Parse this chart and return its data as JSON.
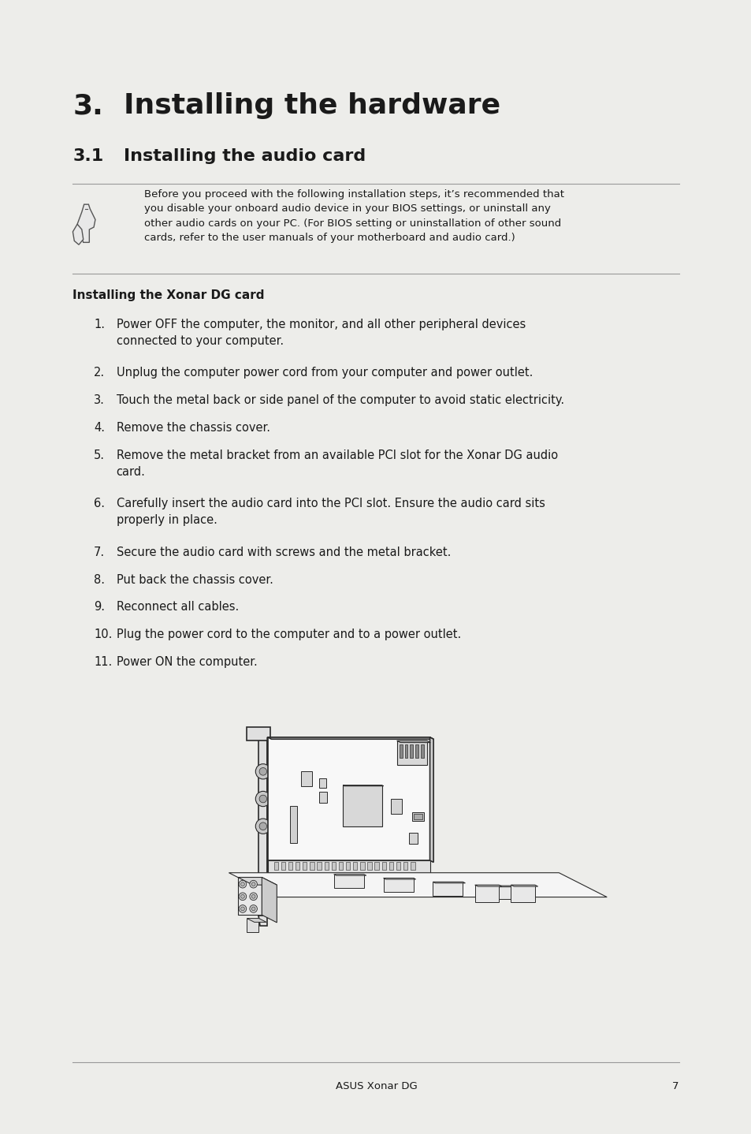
{
  "bg_color": "#ededea",
  "page_bg": "#ffffff",
  "title_number": "3.",
  "title_text": "Installing the hardware",
  "subtitle_number": "3.1",
  "subtitle_text": "Installing the audio card",
  "note_text": "Before you proceed with the following installation steps, it’s recommended that\nyou disable your onboard audio device in your BIOS settings, or uninstall any\nother audio cards on your PC. (For BIOS setting or uninstallation of other sound\ncards, refer to the user manuals of your motherboard and audio card.)",
  "section_title": "Installing the Xonar DG card",
  "items": [
    "Power OFF the computer, the monitor, and all other peripheral devices\nconnected to your computer.",
    "Unplug the computer power cord from your computer and power outlet.",
    "Touch the metal back or side panel of the computer to avoid static electricity.",
    "Remove the chassis cover.",
    "Remove the metal bracket from an available PCI slot for the Xonar DG audio\ncard.",
    "Carefully insert the audio card into the PCI slot. Ensure the audio card sits\nproperly in place.",
    "Secure the audio card with screws and the metal bracket.",
    "Put back the chassis cover.",
    "Reconnect all cables.",
    "Plug the power cord to the computer and to a power outlet.",
    "Power ON the computer."
  ],
  "footer_text": "ASUS Xonar DG",
  "footer_page": "7",
  "text_color": "#1a1a1a",
  "line_color": "#999999"
}
